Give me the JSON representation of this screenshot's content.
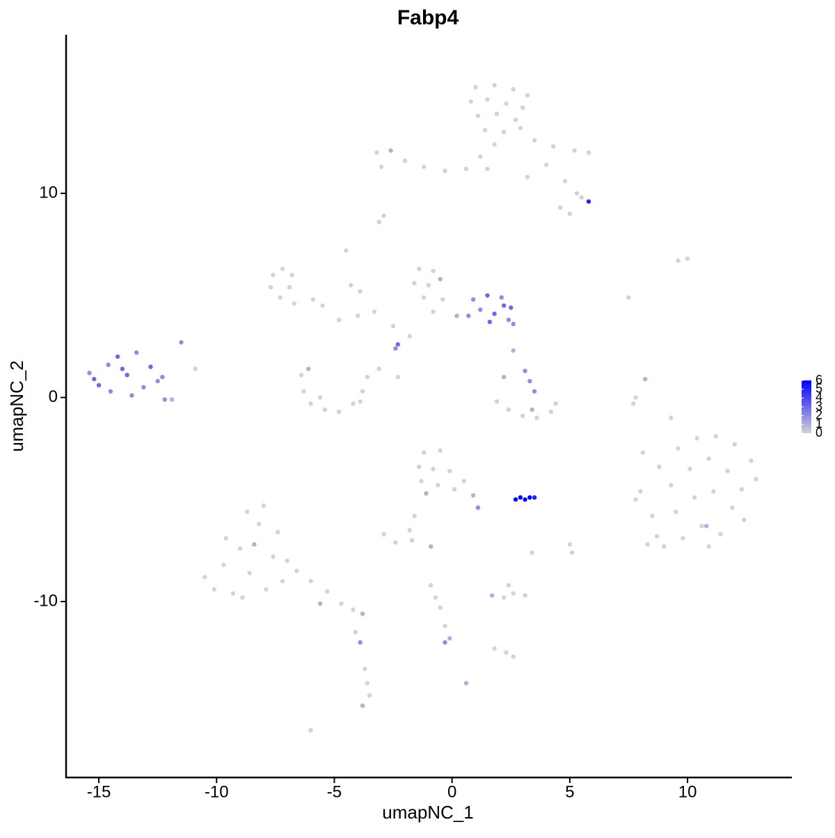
{
  "chart_data": {
    "type": "scatter",
    "title": "Fabp4",
    "x_label": "umapNC_1",
    "y_label": "umapNC_2",
    "xlim": [
      -16.39,
      14.43
    ],
    "ylim": [
      -18.62,
      17.77
    ],
    "xticks": [
      -15,
      -10,
      -5,
      0,
      5,
      10
    ],
    "yticks": [
      -10,
      0,
      10
    ],
    "color_low": "#d3d3d3",
    "color_high": "#0000ff",
    "colorlim": [
      0,
      6
    ],
    "colorticks": [
      0,
      1,
      2,
      3,
      4,
      5,
      6
    ],
    "x": [
      1.0,
      1.8,
      2.6,
      3.2,
      0.8,
      1.5,
      2.3,
      3.0,
      1.1,
      1.9,
      2.7,
      1.4,
      2.2,
      2.9,
      1.8,
      1.2,
      1.5,
      -3.2,
      -2.6,
      -2.0,
      -1.2,
      -0.3,
      0.6,
      -3.0,
      3.5,
      4.3,
      5.2,
      5.8,
      4.0,
      4.8,
      5.3,
      5.8,
      5.5,
      4.6,
      5.0,
      3.2,
      -2.9,
      -3.1,
      -7.6,
      -7.2,
      -6.8,
      -7.7,
      -7.3,
      -6.7,
      -6.9,
      -5.5,
      -4.8,
      -4.0,
      -3.3,
      -4.5,
      -4.3,
      -3.9,
      -2.5,
      -2.3,
      -2.4,
      -1.8,
      -5.9,
      -1.4,
      -0.8,
      -1.6,
      -1.0,
      -0.5,
      -1.2,
      -0.4,
      0.2,
      -0.8,
      0.9,
      1.5,
      2.1,
      2.5,
      1.2,
      1.8,
      2.4,
      2.6,
      1.6,
      0.7,
      2.2,
      -6.4,
      -6.3,
      -6.0,
      -5.4,
      -4.8,
      -4.2,
      -3.8,
      -3.6,
      -3.9,
      -5.6,
      -6.1,
      -3.1,
      -2.3,
      1.9,
      2.4,
      3.0,
      3.6,
      4.2,
      4.4,
      3.4,
      2.2,
      3.1,
      3.3,
      3.5,
      2.6,
      -15.4,
      -15.0,
      -14.6,
      -14.2,
      -13.8,
      -13.4,
      -13.1,
      -12.8,
      -12.5,
      -14.5,
      -13.6,
      -12.2,
      -11.9,
      -12.3,
      -11.5,
      -10.9,
      -15.2,
      -14.0,
      8.0,
      8.8,
      9.6,
      10.4,
      11.2,
      12.0,
      12.7,
      12.9,
      8.5,
      9.3,
      10.1,
      10.9,
      11.7,
      12.3,
      8.7,
      9.5,
      10.3,
      11.1,
      11.9,
      12.4,
      9.0,
      9.8,
      10.6,
      11.4,
      8.3,
      10.9,
      7.8,
      10.8,
      9.3,
      7.7,
      7.8,
      8.1,
      9.6,
      10.0,
      7.5,
      8.2,
      -1.2,
      -0.5,
      -1.4,
      -0.8,
      -0.1,
      0.5,
      -1.3,
      -0.6,
      0.1,
      0.9,
      1.1,
      -1.1,
      -1.6,
      -1.8,
      2.7,
      2.9,
      3.1,
      3.3,
      3.5,
      -2.9,
      -2.4,
      -1.7,
      -0.9,
      5.0,
      3.4,
      5.1,
      -10.5,
      -10.1,
      -9.7,
      -9.3,
      -9.0,
      -8.6,
      -8.2,
      -8.0,
      -8.7,
      -7.6,
      -7.2,
      -7.4,
      -9.6,
      -8.9,
      -7.9,
      -7.0,
      -6.6,
      -8.4,
      -6.0,
      -5.3,
      -4.7,
      -4.2,
      -3.8,
      -4.1,
      -3.9,
      -3.7,
      -3.6,
      -3.5,
      -3.8,
      -5.6,
      1.7,
      2.2,
      2.6,
      3.1,
      2.4,
      2.3,
      2.6,
      1.8,
      -0.9,
      -0.5,
      -0.3,
      -0.3,
      -0.1,
      -0.7,
      0.6,
      -6.0
    ],
    "y": [
      15.2,
      15.3,
      15.1,
      14.8,
      14.5,
      14.6,
      14.4,
      14.2,
      13.8,
      13.9,
      13.6,
      13.1,
      13.0,
      13.2,
      12.4,
      11.8,
      11.2,
      12.0,
      12.1,
      11.6,
      11.3,
      11.1,
      11.2,
      11.3,
      12.6,
      12.3,
      12.1,
      12.0,
      11.4,
      10.6,
      10.0,
      9.6,
      9.8,
      9.3,
      9.0,
      10.8,
      8.9,
      8.6,
      6.0,
      6.3,
      6.0,
      5.4,
      4.9,
      4.6,
      5.4,
      4.5,
      3.8,
      4.0,
      4.2,
      7.2,
      5.5,
      5.2,
      3.5,
      2.6,
      2.4,
      3.0,
      4.8,
      6.3,
      6.2,
      5.6,
      5.5,
      5.8,
      4.9,
      4.8,
      4.0,
      4.2,
      4.8,
      5.0,
      4.9,
      4.4,
      4.3,
      4.1,
      3.8,
      3.6,
      3.7,
      4.0,
      4.5,
      1.1,
      0.3,
      -0.3,
      -0.6,
      -0.7,
      -0.3,
      0.3,
      1.0,
      -0.2,
      0.0,
      1.4,
      1.4,
      1.0,
      -0.2,
      -0.6,
      -0.9,
      -1.0,
      -0.7,
      -0.3,
      -0.6,
      1.0,
      1.3,
      0.8,
      0.3,
      2.3,
      1.2,
      0.6,
      1.6,
      2.0,
      1.1,
      2.2,
      0.5,
      1.5,
      0.8,
      0.3,
      0.1,
      -0.1,
      -0.1,
      1.0,
      2.7,
      1.4,
      0.9,
      1.4,
      -4.6,
      -3.4,
      -2.5,
      -2.0,
      -1.9,
      -2.3,
      -3.1,
      -4.0,
      -5.8,
      -4.3,
      -3.5,
      -3.0,
      -3.6,
      -4.5,
      -6.8,
      -5.6,
      -4.9,
      -4.6,
      -5.4,
      -6.0,
      -7.3,
      -6.9,
      -6.3,
      -6.7,
      -7.2,
      -7.3,
      -5.0,
      -6.3,
      -1.0,
      -0.3,
      0.0,
      -2.7,
      6.7,
      6.8,
      4.9,
      0.9,
      -2.7,
      -2.6,
      -3.4,
      -3.5,
      -3.6,
      -4.1,
      -4.1,
      -4.3,
      -4.5,
      -4.8,
      -5.4,
      -4.7,
      -5.8,
      -6.5,
      -5.0,
      -4.9,
      -5.0,
      -4.9,
      -4.9,
      -6.7,
      -7.1,
      -7.0,
      -7.3,
      -7.2,
      -7.6,
      -7.6,
      -8.8,
      -9.4,
      -8.2,
      -9.6,
      -7.4,
      -8.6,
      -6.2,
      -5.3,
      -5.6,
      -7.8,
      -9.0,
      -6.6,
      -6.9,
      -9.8,
      -9.4,
      -8.0,
      -8.5,
      -7.2,
      -9.0,
      -9.5,
      -10.1,
      -10.4,
      -10.6,
      -11.5,
      -12.0,
      -13.3,
      -14.0,
      -14.6,
      -15.1,
      -10.1,
      -9.7,
      -9.8,
      -9.6,
      -9.7,
      -9.2,
      -12.5,
      -12.7,
      -12.3,
      -9.2,
      -10.3,
      -11.2,
      -12.0,
      -11.8,
      -9.8,
      -14.0,
      -16.3
    ],
    "expression": [
      0,
      0,
      0,
      0,
      0,
      0,
      0,
      0,
      0,
      0,
      0,
      0,
      0,
      0,
      0,
      0,
      0,
      0,
      1,
      0,
      0,
      0,
      0,
      0,
      0,
      0,
      0,
      0,
      0,
      0,
      0,
      5,
      0,
      0,
      0,
      0,
      0,
      0,
      0,
      0,
      0,
      0,
      0,
      0,
      0,
      0,
      0,
      0,
      0,
      0,
      0,
      0,
      0,
      3,
      2,
      0,
      0,
      0,
      0,
      0,
      0,
      1,
      0,
      0,
      1,
      0,
      2,
      3,
      2,
      3,
      2,
      3,
      2,
      2,
      3,
      2,
      3,
      0,
      0,
      0,
      0,
      0,
      0,
      0,
      0,
      0,
      0,
      1,
      0,
      0,
      0,
      0,
      0,
      0,
      0,
      0,
      1,
      1,
      2,
      2,
      2,
      1,
      2,
      3,
      2,
      3,
      3,
      2,
      2,
      3,
      2,
      2,
      2,
      2,
      1,
      2,
      2,
      0,
      3,
      3,
      0,
      0,
      0,
      0,
      0,
      0,
      0,
      0,
      0,
      0,
      0,
      0,
      0,
      0,
      0,
      0,
      0,
      0,
      0,
      0,
      0,
      0,
      0,
      0,
      0,
      0,
      0,
      1,
      0,
      0,
      0,
      0,
      0,
      0,
      0,
      1,
      0,
      0,
      0,
      0,
      0,
      0,
      0,
      0,
      0,
      1,
      2,
      1,
      0,
      0,
      6,
      6,
      6,
      6,
      5,
      0,
      0,
      0,
      1,
      0,
      0,
      0,
      0,
      0,
      0,
      0,
      0,
      0,
      0,
      0,
      0,
      0,
      0,
      0,
      0,
      0,
      0,
      0,
      0,
      1,
      0,
      0,
      0,
      0,
      1,
      0,
      2,
      0,
      0,
      0,
      1,
      1,
      1,
      0,
      0,
      0,
      0,
      0,
      0,
      0,
      0,
      0,
      0,
      2,
      1,
      0,
      1,
      0
    ]
  }
}
